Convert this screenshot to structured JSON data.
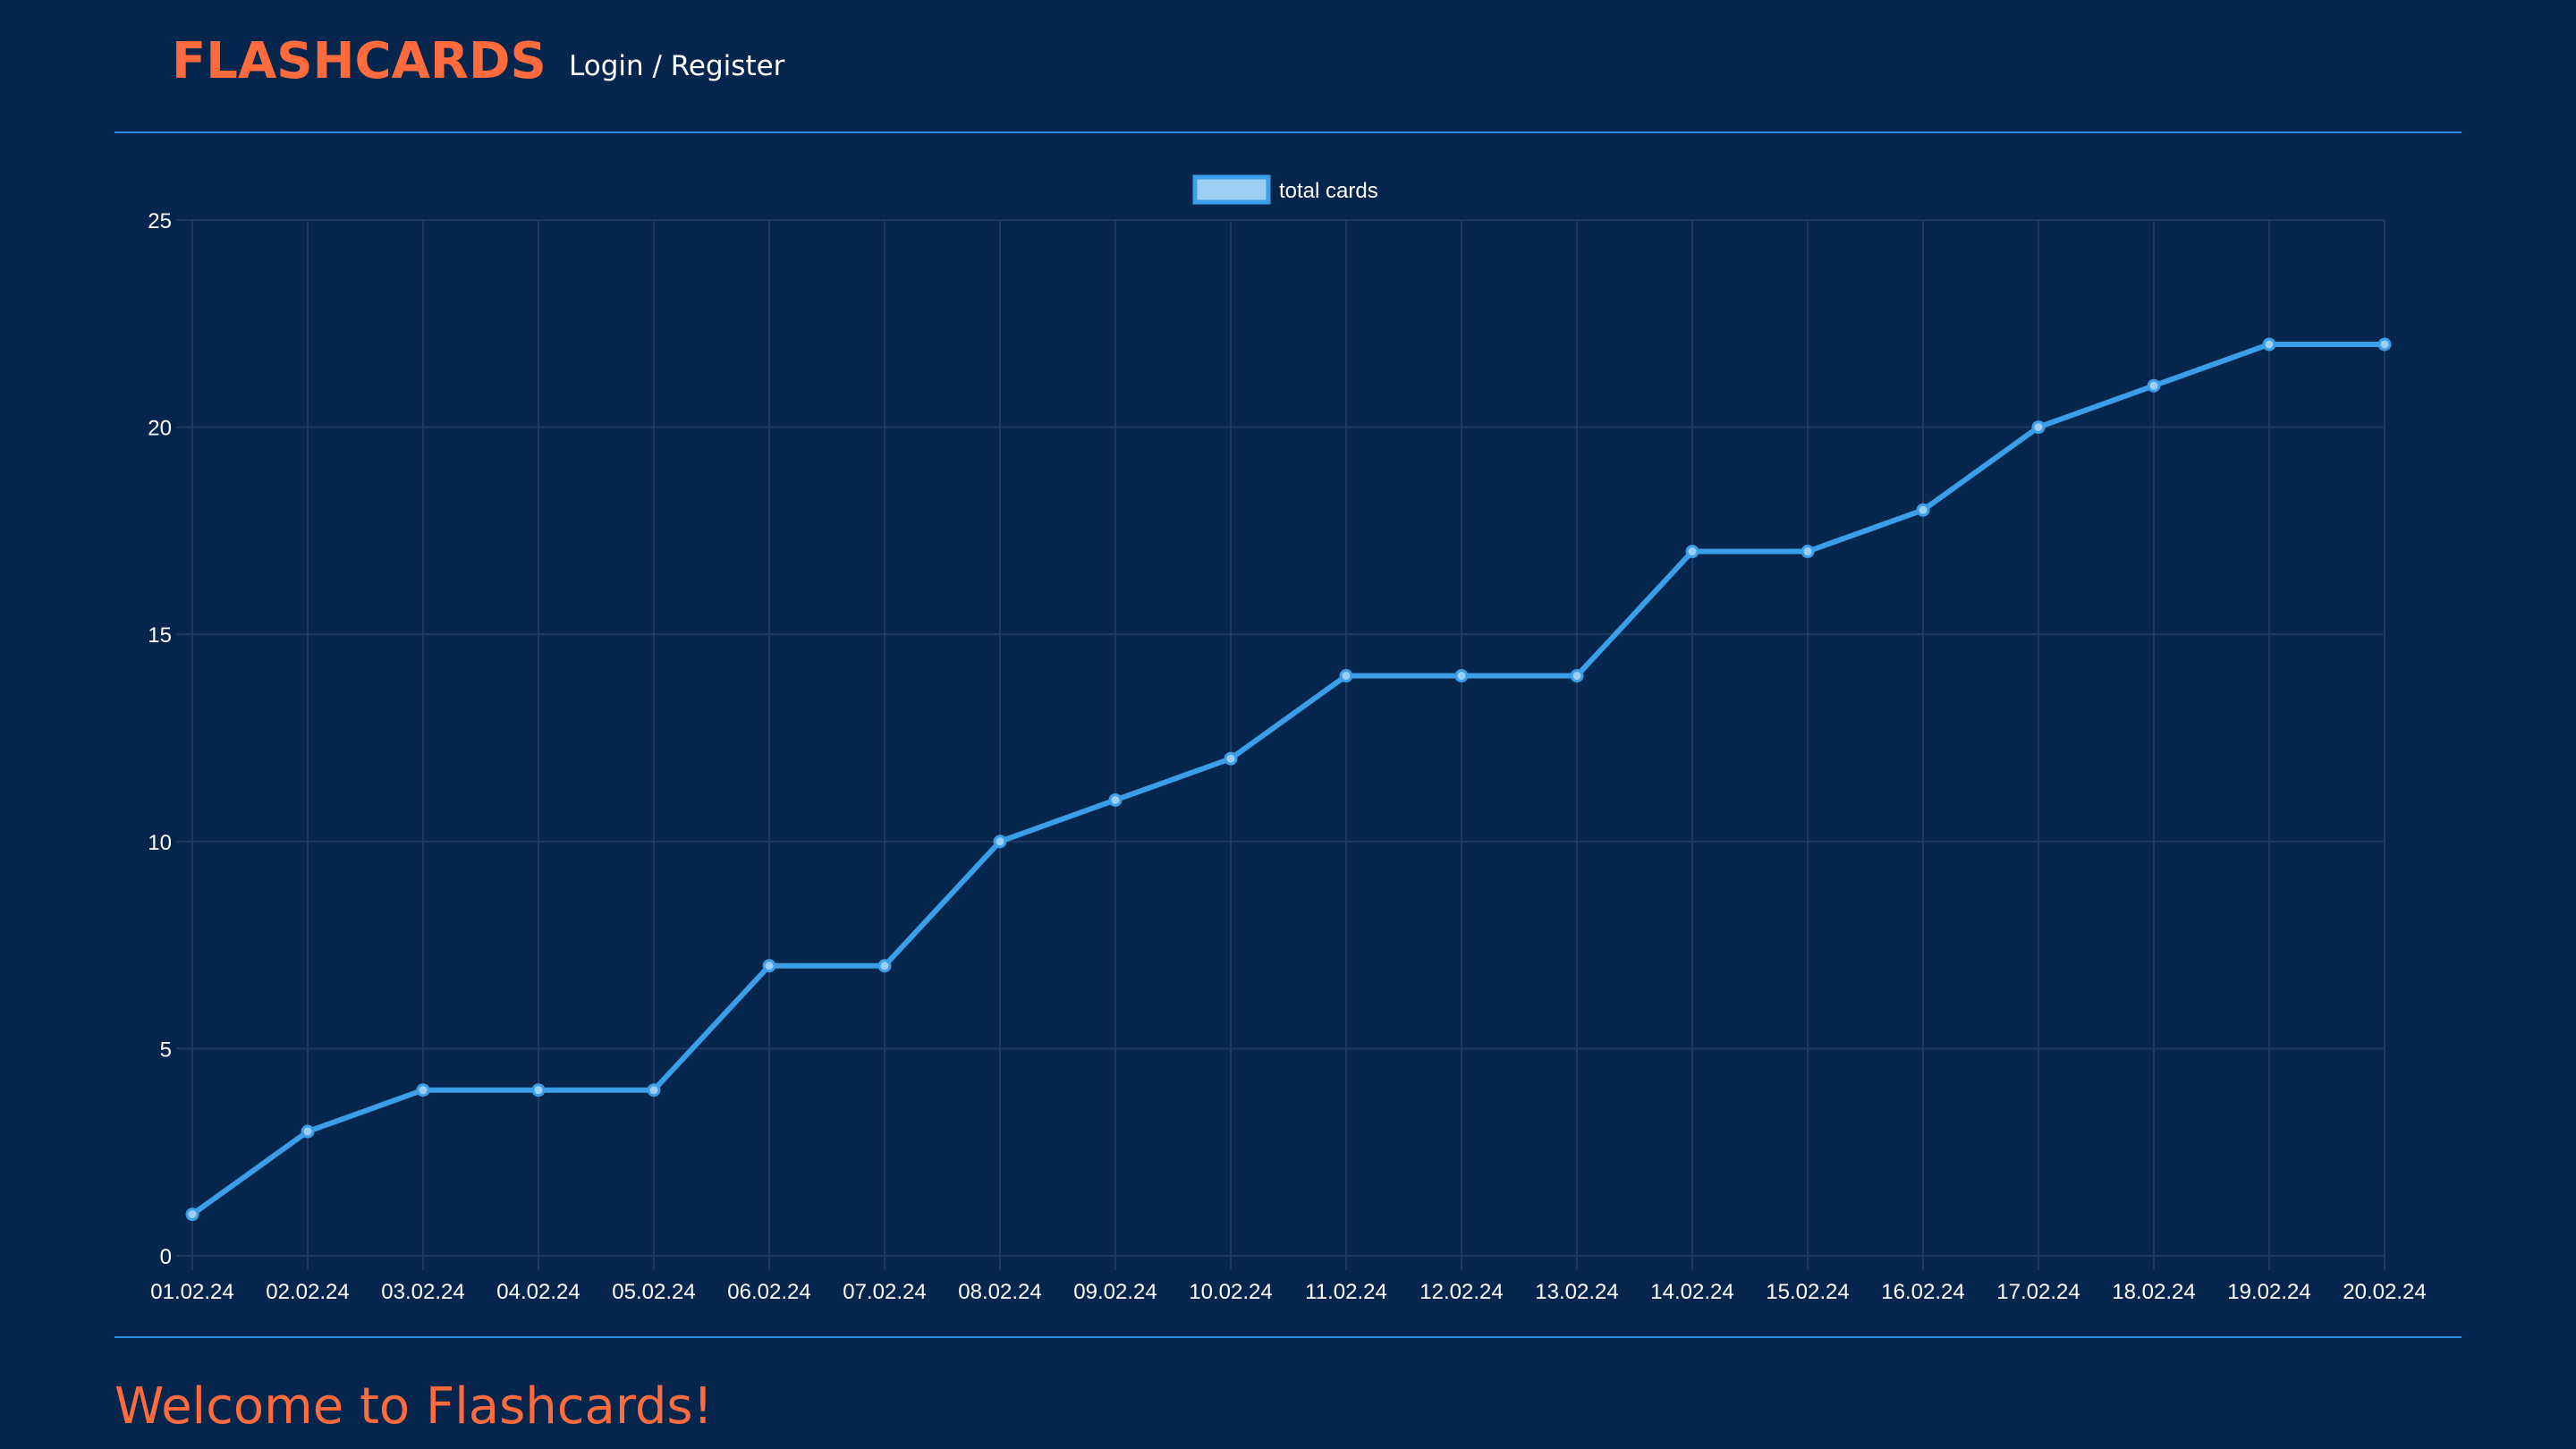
{
  "header": {
    "brand": "FLASHCARDS",
    "login_label": "Login / Register"
  },
  "welcome": {
    "title": "Welcome to Flashcards!"
  },
  "colors": {
    "background": "#06264d",
    "accent": "#ff6b3d",
    "line": "#3a9ee8",
    "point_fill": "#9dcff5",
    "grid": "#1d3a5e",
    "divider": "#2b8fe0"
  },
  "chart_data": {
    "type": "line",
    "legend_position": "top-center",
    "grid": true,
    "x": [
      "01.02.24",
      "02.02.24",
      "03.02.24",
      "04.02.24",
      "05.02.24",
      "06.02.24",
      "07.02.24",
      "08.02.24",
      "09.02.24",
      "10.02.24",
      "11.02.24",
      "12.02.24",
      "13.02.24",
      "14.02.24",
      "15.02.24",
      "16.02.24",
      "17.02.24",
      "18.02.24",
      "19.02.24",
      "20.02.24"
    ],
    "series": [
      {
        "name": "total cards",
        "values": [
          1,
          3,
          4,
          4,
          4,
          7,
          7,
          10,
          11,
          12,
          14,
          14,
          14,
          17,
          17,
          18,
          20,
          21,
          22,
          22
        ]
      }
    ],
    "ylim": [
      0,
      25
    ],
    "yticks": [
      "0",
      "5",
      "10",
      "15",
      "20",
      "25"
    ]
  }
}
